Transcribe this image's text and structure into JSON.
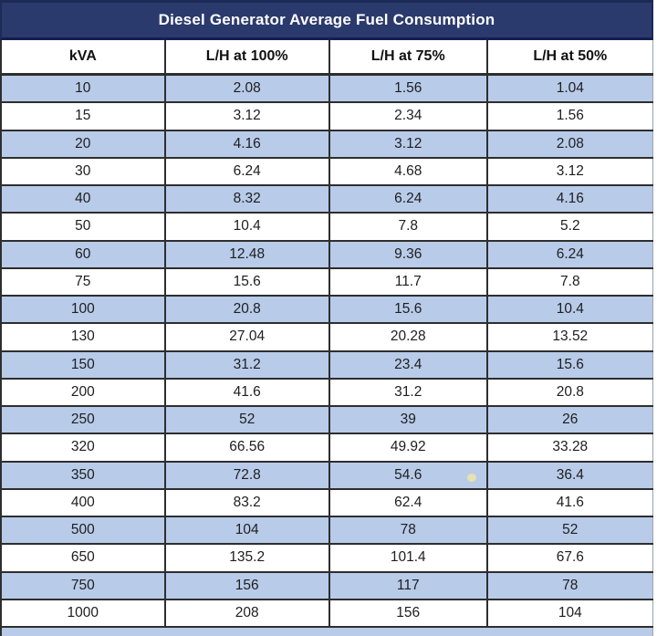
{
  "title": "Diesel Generator Average Fuel Consumption",
  "chart_data": {
    "type": "table",
    "title": "Diesel Generator Average Fuel Consumption",
    "columns": [
      "kVA",
      "L/H at 100%",
      "L/H at 75%",
      "L/H at 50%"
    ],
    "rows": [
      [
        "10",
        "2.08",
        "1.56",
        "1.04"
      ],
      [
        "15",
        "3.12",
        "2.34",
        "1.56"
      ],
      [
        "20",
        "4.16",
        "3.12",
        "2.08"
      ],
      [
        "30",
        "6.24",
        "4.68",
        "3.12"
      ],
      [
        "40",
        "8.32",
        "6.24",
        "4.16"
      ],
      [
        "50",
        "10.4",
        "7.8",
        "5.2"
      ],
      [
        "60",
        "12.48",
        "9.36",
        "6.24"
      ],
      [
        "75",
        "15.6",
        "11.7",
        "7.8"
      ],
      [
        "100",
        "20.8",
        "15.6",
        "10.4"
      ],
      [
        "130",
        "27.04",
        "20.28",
        "13.52"
      ],
      [
        "150",
        "31.2",
        "23.4",
        "15.6"
      ],
      [
        "200",
        "41.6",
        "31.2",
        "20.8"
      ],
      [
        "250",
        "52",
        "39",
        "26"
      ],
      [
        "320",
        "66.56",
        "49.92",
        "33.28"
      ],
      [
        "350",
        "72.8",
        "54.6",
        "36.4"
      ],
      [
        "400",
        "83.2",
        "62.4",
        "41.6"
      ],
      [
        "500",
        "104",
        "78",
        "52"
      ],
      [
        "650",
        "135.2",
        "101.4",
        "67.6"
      ],
      [
        "750",
        "156",
        "117",
        "78"
      ],
      [
        "1000",
        "208",
        "156",
        "104"
      ]
    ],
    "layout": {
      "striped": true,
      "first_data_row_shaded": true,
      "header_bold": true,
      "text_align": "center"
    }
  },
  "colors": {
    "title_bg": "#2b3a6d",
    "title_text": "#ffffff",
    "row_shaded": "#b8cbe9",
    "row_plain": "#ffffff",
    "grid_border": "#2e2e2e",
    "cell_text": "#1e1e1e",
    "artifact_dot": "#ece4ac"
  }
}
